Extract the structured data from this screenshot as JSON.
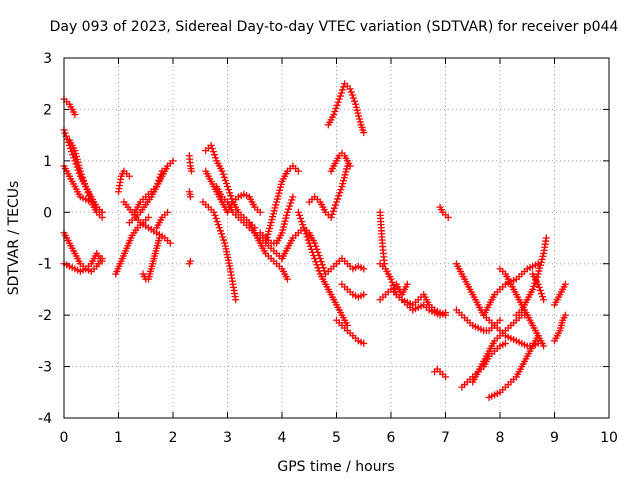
{
  "chart_data": {
    "type": "scatter",
    "title": "Day 093 of 2023, Sidereal Day-to-day VTEC variation (SDTVAR) for receiver p044",
    "xlabel": "GPS time / hours",
    "ylabel": "SDTVAR / TECUs",
    "xlim": [
      0,
      10
    ],
    "ylim": [
      -4,
      3
    ],
    "xticks": [
      0,
      1,
      2,
      3,
      4,
      5,
      6,
      7,
      8,
      9,
      10
    ],
    "yticks": [
      -4,
      -3,
      -2,
      -1,
      0,
      1,
      2,
      3
    ],
    "xtick_labels": [
      "0",
      "1",
      "2",
      "3",
      "4",
      "5",
      "6",
      "7",
      "8",
      "9",
      "10"
    ],
    "ytick_labels": [
      "-4",
      "-3",
      "-2",
      "-1",
      "0",
      "1",
      "2",
      "3"
    ],
    "grid": true,
    "marker": "+",
    "colors": {
      "series": "#ff0000",
      "grid": "#a0a0a0",
      "axis": "#000000"
    },
    "series": [
      {
        "name": "s1",
        "x": [
          0.0,
          0.05,
          0.1,
          0.15,
          0.2
        ],
        "y": [
          2.2,
          2.15,
          2.1,
          2.0,
          1.9
        ]
      },
      {
        "name": "s2",
        "x": [
          0.0,
          0.1,
          0.2,
          0.3,
          0.4,
          0.5,
          0.6,
          0.7
        ],
        "y": [
          1.6,
          1.3,
          1.0,
          0.7,
          0.5,
          0.3,
          0.1,
          0.0
        ]
      },
      {
        "name": "s3",
        "x": [
          0.0,
          0.1,
          0.2,
          0.3,
          0.4,
          0.5,
          0.6,
          0.7
        ],
        "y": [
          0.9,
          0.7,
          0.5,
          0.3,
          0.25,
          0.2,
          0.1,
          0.0
        ]
      },
      {
        "name": "s4",
        "x": [
          0.1,
          0.2,
          0.3,
          0.4,
          0.5,
          0.6,
          0.7
        ],
        "y": [
          1.4,
          1.2,
          0.8,
          0.5,
          0.2,
          0.0,
          -0.1
        ]
      },
      {
        "name": "s5",
        "x": [
          0.0,
          0.1,
          0.2,
          0.3,
          0.4,
          0.5,
          0.6,
          0.7
        ],
        "y": [
          -0.4,
          -0.6,
          -0.8,
          -1.0,
          -1.1,
          -1.15,
          -1.05,
          -0.9
        ]
      },
      {
        "name": "s6",
        "x": [
          0.0,
          0.1,
          0.2,
          0.3,
          0.4,
          0.5,
          0.6,
          0.7
        ],
        "y": [
          -1.0,
          -1.05,
          -1.1,
          -1.15,
          -1.1,
          -1.0,
          -0.8,
          -0.95
        ]
      },
      {
        "name": "s7",
        "x": [
          0.95,
          1.05,
          1.15,
          1.25,
          1.35,
          1.45,
          1.55
        ],
        "y": [
          -1.2,
          -0.95,
          -0.7,
          -0.45,
          -0.3,
          -0.2,
          -0.1
        ]
      },
      {
        "name": "s8",
        "x": [
          1.0,
          1.05,
          1.1,
          1.15,
          1.2
        ],
        "y": [
          0.4,
          0.7,
          0.8,
          0.75,
          0.7
        ]
      },
      {
        "name": "s9",
        "x": [
          1.1,
          1.25,
          1.4,
          1.55,
          1.7,
          1.85,
          1.95
        ],
        "y": [
          0.2,
          0.0,
          -0.2,
          -0.3,
          -0.4,
          -0.5,
          -0.6
        ]
      },
      {
        "name": "s10",
        "x": [
          1.2,
          1.3,
          1.4,
          1.5,
          1.6,
          1.7,
          1.8,
          1.9,
          2.0
        ],
        "y": [
          -0.2,
          -0.1,
          0.0,
          0.15,
          0.3,
          0.5,
          0.7,
          0.9,
          1.0
        ]
      },
      {
        "name": "s11",
        "x": [
          1.3,
          1.4,
          1.5,
          1.6,
          1.7,
          1.8
        ],
        "y": [
          0.0,
          0.2,
          0.3,
          0.4,
          0.5,
          0.8
        ]
      },
      {
        "name": "s12",
        "x": [
          1.45,
          1.5,
          1.55,
          1.6,
          1.65,
          1.7,
          1.75
        ],
        "y": [
          -1.2,
          -1.3,
          -1.3,
          -1.1,
          -0.9,
          -0.7,
          -0.5
        ]
      },
      {
        "name": "s13",
        "x": [
          1.7,
          1.8,
          1.9
        ],
        "y": [
          -0.3,
          -0.1,
          0.0
        ]
      },
      {
        "name": "s14",
        "x": [
          2.3,
          2.32,
          2.34
        ],
        "y": [
          1.1,
          0.9,
          0.8
        ]
      },
      {
        "name": "s15",
        "x": [
          2.3,
          2.32
        ],
        "y": [
          0.4,
          0.3
        ]
      },
      {
        "name": "s16",
        "x": [
          2.3,
          2.32
        ],
        "y": [
          -1.0,
          -0.95
        ]
      },
      {
        "name": "s17",
        "x": [
          2.55,
          2.65,
          2.75,
          2.85,
          2.95,
          3.05,
          3.15
        ],
        "y": [
          0.2,
          0.1,
          0.0,
          -0.3,
          -0.6,
          -1.1,
          -1.7
        ]
      },
      {
        "name": "s18",
        "x": [
          2.6,
          2.7,
          2.8,
          2.9,
          3.0,
          3.1,
          3.2,
          3.3,
          3.4,
          3.5
        ],
        "y": [
          1.2,
          1.3,
          1.0,
          0.8,
          0.5,
          0.2,
          0.0,
          -0.1,
          -0.2,
          -0.3
        ]
      },
      {
        "name": "s19",
        "x": [
          2.6,
          2.7,
          2.8,
          2.9,
          3.0,
          3.1,
          3.2,
          3.3,
          3.4,
          3.5,
          3.6
        ],
        "y": [
          0.8,
          0.6,
          0.4,
          0.2,
          0.0,
          0.2,
          0.3,
          0.35,
          0.3,
          0.1,
          0.0
        ]
      },
      {
        "name": "s20",
        "x": [
          2.8,
          2.9,
          3.0,
          3.1,
          3.2,
          3.3,
          3.4,
          3.5,
          3.6,
          3.7,
          3.8,
          3.9,
          4.0
        ],
        "y": [
          0.5,
          0.3,
          0.2,
          0.0,
          -0.1,
          -0.2,
          -0.3,
          -0.4,
          -0.5,
          -0.6,
          -0.7,
          -0.8,
          -0.9
        ]
      },
      {
        "name": "s21",
        "x": [
          3.4,
          3.5,
          3.6,
          3.7,
          3.8,
          3.9,
          4.0,
          4.1
        ],
        "y": [
          -0.2,
          -0.4,
          -0.6,
          -0.8,
          -0.9,
          -1.0,
          -1.1,
          -1.3
        ]
      },
      {
        "name": "s22",
        "x": [
          3.7,
          3.8,
          3.9,
          4.0,
          4.1,
          4.2,
          4.3
        ],
        "y": [
          -0.6,
          -0.2,
          0.2,
          0.6,
          0.8,
          0.9,
          0.8
        ]
      },
      {
        "name": "s23",
        "x": [
          3.6,
          3.7,
          3.8,
          3.9,
          4.0,
          4.1,
          4.2
        ],
        "y": [
          -0.4,
          -0.5,
          -0.6,
          -0.6,
          -0.4,
          0.0,
          0.3
        ]
      },
      {
        "name": "s24",
        "x": [
          4.0,
          4.1,
          4.2,
          4.3,
          4.4,
          4.5,
          4.6,
          4.7,
          4.8,
          4.9,
          5.0
        ],
        "y": [
          -0.9,
          -0.7,
          -0.5,
          -0.4,
          -0.3,
          -0.4,
          -0.6,
          -0.9,
          -1.2,
          -1.1,
          -1.0
        ]
      },
      {
        "name": "s25",
        "x": [
          4.3,
          4.4,
          4.5,
          4.6,
          4.7,
          4.8,
          4.9,
          5.0,
          5.1,
          5.2
        ],
        "y": [
          0.0,
          -0.3,
          -0.6,
          -0.9,
          -1.2,
          -1.4,
          -1.6,
          -1.8,
          -2.0,
          -2.2
        ]
      },
      {
        "name": "s26",
        "x": [
          4.5,
          4.6,
          4.7,
          4.8,
          4.9,
          5.0,
          5.1,
          5.2
        ],
        "y": [
          0.2,
          0.3,
          0.2,
          0.0,
          -0.1,
          0.2,
          0.5,
          0.9
        ]
      },
      {
        "name": "s27",
        "x": [
          5.0,
          5.1,
          5.2,
          5.3,
          5.4,
          5.5
        ],
        "y": [
          -2.1,
          -2.2,
          -2.3,
          -2.4,
          -2.5,
          -2.55
        ]
      },
      {
        "name": "s28",
        "x": [
          4.9,
          5.0,
          5.05,
          5.1,
          5.15,
          5.2,
          5.25
        ],
        "y": [
          0.8,
          1.0,
          1.1,
          1.15,
          1.1,
          1.0,
          0.9
        ]
      },
      {
        "name": "s29",
        "x": [
          4.85,
          4.95,
          5.05,
          5.15,
          5.25,
          5.35,
          5.45,
          5.5
        ],
        "y": [
          1.7,
          1.9,
          2.2,
          2.5,
          2.4,
          2.1,
          1.7,
          1.55
        ]
      },
      {
        "name": "s30",
        "x": [
          5.0,
          5.1,
          5.2,
          5.3,
          5.4,
          5.5
        ],
        "y": [
          -1.0,
          -0.9,
          -1.0,
          -1.1,
          -1.05,
          -1.1
        ]
      },
      {
        "name": "s31",
        "x": [
          5.1,
          5.2,
          5.3,
          5.4,
          5.5
        ],
        "y": [
          -1.4,
          -1.5,
          -1.6,
          -1.65,
          -1.6
        ]
      },
      {
        "name": "s32",
        "x": [
          5.8,
          5.82,
          5.84,
          5.86,
          5.88
        ],
        "y": [
          0.0,
          -0.3,
          -0.6,
          -0.8,
          -1.0
        ]
      },
      {
        "name": "s33",
        "x": [
          5.8,
          5.9,
          6.0,
          6.1,
          6.2,
          6.3,
          6.4,
          6.5,
          6.6,
          6.7,
          6.8,
          6.9,
          7.0
        ],
        "y": [
          -1.0,
          -1.1,
          -1.3,
          -1.6,
          -1.7,
          -1.8,
          -1.9,
          -1.85,
          -1.8,
          -1.9,
          -1.95,
          -2.0,
          -1.95
        ]
      },
      {
        "name": "s34",
        "x": [
          5.8,
          5.9,
          6.0,
          6.1,
          6.2,
          6.3,
          6.4,
          6.5,
          6.6,
          6.7,
          6.8,
          6.9,
          7.0
        ],
        "y": [
          -1.7,
          -1.6,
          -1.5,
          -1.6,
          -1.7,
          -1.75,
          -1.8,
          -1.7,
          -1.6,
          -1.8,
          -1.9,
          -1.95,
          -2.0
        ]
      },
      {
        "name": "s35",
        "x": [
          6.1,
          6.15,
          6.2,
          6.25,
          6.3
        ],
        "y": [
          -1.4,
          -1.5,
          -1.6,
          -1.5,
          -1.4
        ]
      },
      {
        "name": "s36",
        "x": [
          6.9,
          6.95,
          7.0,
          7.05
        ],
        "y": [
          0.1,
          0.0,
          -0.05,
          -0.1
        ]
      },
      {
        "name": "s37",
        "x": [
          6.8,
          6.85,
          6.9,
          6.95,
          7.0
        ],
        "y": [
          -3.1,
          -3.05,
          -3.1,
          -3.15,
          -3.2
        ]
      },
      {
        "name": "s38",
        "x": [
          7.2,
          7.3,
          7.4,
          7.5,
          7.6,
          7.7,
          7.8,
          7.9,
          8.0,
          8.1,
          8.2,
          8.3,
          8.4,
          8.5,
          8.6,
          8.7
        ],
        "y": [
          -1.0,
          -1.2,
          -1.4,
          -1.6,
          -1.8,
          -2.0,
          -2.1,
          -2.2,
          -2.3,
          -2.4,
          -2.45,
          -2.5,
          -2.55,
          -2.6,
          -2.6,
          -2.55
        ]
      },
      {
        "name": "s39",
        "x": [
          7.2,
          7.3,
          7.4,
          7.5,
          7.6,
          7.7,
          7.8,
          7.9,
          8.0
        ],
        "y": [
          -1.9,
          -2.0,
          -2.1,
          -2.2,
          -2.25,
          -2.3,
          -2.3,
          -2.2,
          -2.1
        ]
      },
      {
        "name": "s40",
        "x": [
          7.3,
          7.4,
          7.5,
          7.6,
          7.7,
          7.8,
          7.9,
          8.0,
          8.1
        ],
        "y": [
          -3.4,
          -3.3,
          -3.2,
          -3.1,
          -3.0,
          -2.8,
          -2.7,
          -2.6,
          -2.55
        ]
      },
      {
        "name": "s41",
        "x": [
          7.5,
          7.6,
          7.7,
          7.8,
          7.9,
          8.0,
          8.1,
          8.2,
          8.3,
          8.4,
          8.5
        ],
        "y": [
          -3.3,
          -3.1,
          -2.9,
          -2.7,
          -2.5,
          -2.4,
          -2.3,
          -2.2,
          -2.1,
          -2.0,
          -2.0
        ]
      },
      {
        "name": "s42",
        "x": [
          7.7,
          7.8,
          7.9,
          8.0,
          8.1,
          8.2,
          8.3,
          8.4,
          8.5,
          8.6,
          8.7
        ],
        "y": [
          -2.0,
          -1.8,
          -1.6,
          -1.5,
          -1.4,
          -1.35,
          -1.3,
          -1.2,
          -1.1,
          -1.05,
          -1.0
        ]
      },
      {
        "name": "s43",
        "x": [
          7.8,
          7.9,
          8.0,
          8.1,
          8.2,
          8.3,
          8.4,
          8.5,
          8.6,
          8.7
        ],
        "y": [
          -3.6,
          -3.55,
          -3.5,
          -3.4,
          -3.3,
          -3.2,
          -3.0,
          -2.8,
          -2.6,
          -2.4
        ]
      },
      {
        "name": "s44",
        "x": [
          8.0,
          8.1,
          8.2,
          8.3,
          8.4,
          8.5,
          8.6,
          8.7,
          8.8
        ],
        "y": [
          -1.1,
          -1.2,
          -1.4,
          -1.6,
          -1.8,
          -2.0,
          -2.2,
          -2.4,
          -2.6
        ]
      },
      {
        "name": "s45",
        "x": [
          8.3,
          8.4,
          8.5,
          8.6,
          8.7,
          8.8,
          8.85
        ],
        "y": [
          -2.0,
          -1.9,
          -1.7,
          -1.5,
          -1.2,
          -0.8,
          -0.5
        ]
      },
      {
        "name": "s46",
        "x": [
          8.6,
          8.7,
          8.8
        ],
        "y": [
          -1.2,
          -1.4,
          -1.7
        ]
      },
      {
        "name": "s47",
        "x": [
          9.0,
          9.05,
          9.1,
          9.15,
          9.2
        ],
        "y": [
          -2.5,
          -2.4,
          -2.3,
          -2.1,
          -2.0
        ]
      },
      {
        "name": "s48",
        "x": [
          9.0,
          9.05,
          9.1,
          9.15,
          9.2
        ],
        "y": [
          -1.8,
          -1.7,
          -1.6,
          -1.5,
          -1.4
        ]
      }
    ]
  }
}
